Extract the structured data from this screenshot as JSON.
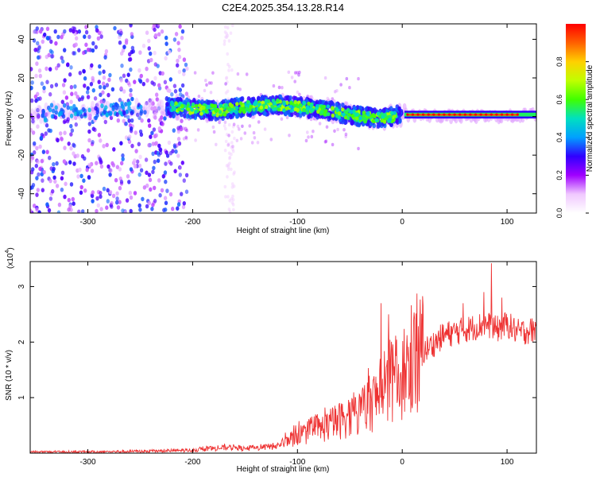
{
  "title": "C2E4.2025.354.13.28.R14",
  "chart_data": [
    {
      "type": "heatmap",
      "title": "C2E4.2025.354.13.28.R14",
      "xlabel": "Height of straight line (km)",
      "ylabel": "Frequency (Hz)",
      "xlim": [
        -355,
        128
      ],
      "ylim": [
        -50,
        48
      ],
      "xticks": [
        -300,
        -200,
        -100,
        0,
        100
      ],
      "yticks": [
        -40,
        -20,
        0,
        20,
        40
      ],
      "colorbar": {
        "label": "Normalized spectral amplitude",
        "range": [
          0,
          1
        ],
        "ticks": [
          0.0,
          0.2,
          0.4,
          0.6,
          0.8
        ],
        "tick_labels": [
          "0.0",
          "0.2",
          "0.4",
          "0.6",
          "0.8"
        ],
        "colormap": [
          "#ffffff",
          "#f0c8ff",
          "#a000ff",
          "#3000ff",
          "#00a0ff",
          "#00e0c0",
          "#40ff00",
          "#c0ff00",
          "#ffd000",
          "#ff6000",
          "#ff0000"
        ]
      },
      "ridge": [
        {
          "x": -340,
          "y": 3
        },
        {
          "x": -300,
          "y": 3
        },
        {
          "x": -270,
          "y": 4
        },
        {
          "x": -225,
          "y": 5
        },
        {
          "x": -200,
          "y": 4
        },
        {
          "x": -175,
          "y": 3
        },
        {
          "x": -150,
          "y": 5
        },
        {
          "x": -120,
          "y": 6
        },
        {
          "x": -100,
          "y": 5
        },
        {
          "x": -80,
          "y": 4
        },
        {
          "x": -60,
          "y": 2
        },
        {
          "x": -40,
          "y": 0
        },
        {
          "x": -20,
          "y": -1
        },
        {
          "x": 0,
          "y": 1
        },
        {
          "x": 50,
          "y": 0
        },
        {
          "x": 100,
          "y": 0
        },
        {
          "x": 125,
          "y": 1
        }
      ]
    },
    {
      "type": "line",
      "xlabel": "Height of straight line (km)",
      "ylabel": "SNR (10 * v/v)",
      "y_scale_label": "(x10",
      "y_scale_exp": "4",
      "xlim": [
        -355,
        128
      ],
      "ylim": [
        0,
        3.45
      ],
      "xticks": [
        -300,
        -200,
        -100,
        0,
        100
      ],
      "yticks": [
        1,
        2,
        3
      ],
      "series": [
        {
          "name": "SNR",
          "color": "#ee3333",
          "x": [
            -355,
            -300,
            -250,
            -200,
            -180,
            -160,
            -150,
            -120,
            -100,
            -80,
            -60,
            -40,
            -20,
            -10,
            0,
            20,
            40,
            60,
            80,
            90,
            100,
            110,
            128
          ],
          "values": [
            0.02,
            0.02,
            0.03,
            0.05,
            0.08,
            0.1,
            0.07,
            0.12,
            0.3,
            0.4,
            0.55,
            0.7,
            1.0,
            1.2,
            1.35,
            1.8,
            2.1,
            2.2,
            2.3,
            2.2,
            2.3,
            2.15,
            2.2
          ],
          "peaks": [
            {
              "x": -20,
              "y": 2.7
            },
            {
              "x": -13,
              "y": 2.5
            },
            {
              "x": 58,
              "y": 2.7
            },
            {
              "x": 85,
              "y": 3.42
            },
            {
              "x": 78,
              "y": 2.9
            },
            {
              "x": 95,
              "y": 2.8
            }
          ]
        }
      ]
    }
  ]
}
